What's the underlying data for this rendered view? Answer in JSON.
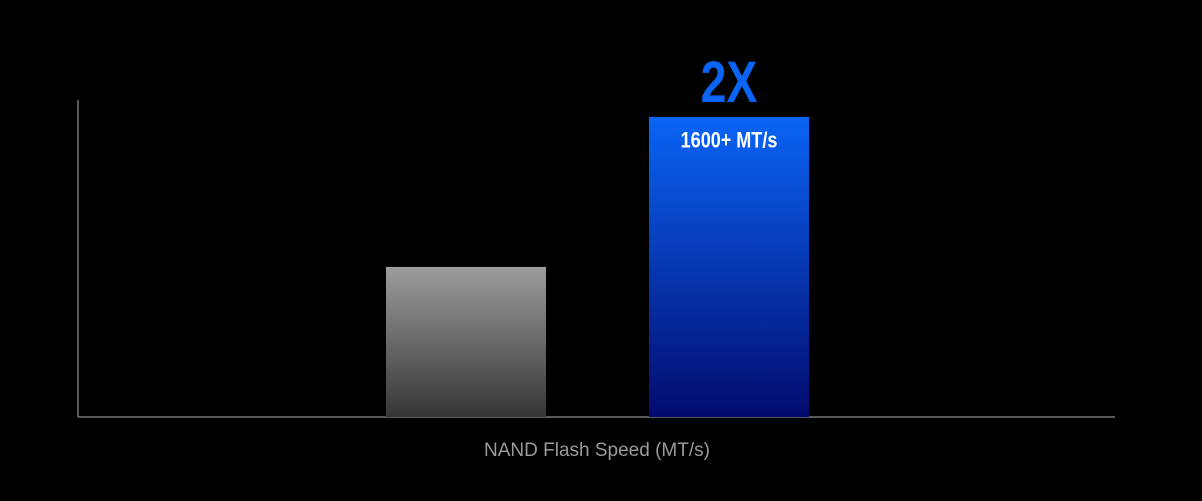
{
  "chart_data": {
    "type": "bar",
    "categories": [
      null,
      null
    ],
    "values": [
      800,
      1600
    ],
    "value_labels": [
      null,
      "1600+ MT/s"
    ],
    "colors": [
      {
        "top": "#9c9c9c",
        "bottom": "#363636"
      },
      {
        "top": "#0a64f5",
        "bottom": "#020b6e"
      }
    ],
    "annotation": "2X",
    "annotation_color": "#0a64f5",
    "xlabel": "NAND Flash Speed (MT/s)",
    "ylim": [
      0,
      1690
    ]
  }
}
